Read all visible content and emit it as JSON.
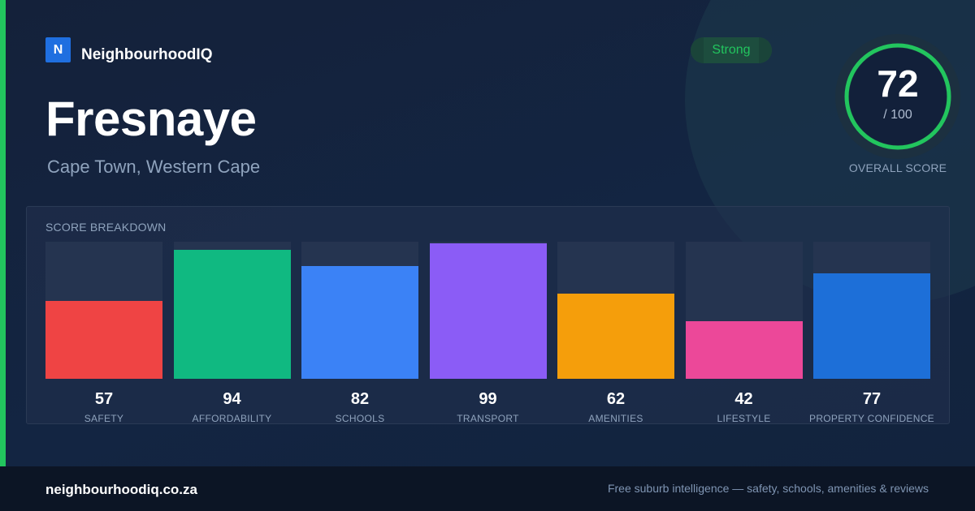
{
  "brand": {
    "logo_letter": "N",
    "name": "NeighbourhoodIQ"
  },
  "suburb": {
    "name": "Fresnaye",
    "location": "Cape Town, Western Cape"
  },
  "rating": {
    "badge": "Strong",
    "score": "72",
    "max": "/ 100",
    "score_fraction": 0.72,
    "caption": "OVERALL SCORE"
  },
  "breakdown": {
    "title": "SCORE BREAKDOWN",
    "items": [
      {
        "label": "SAFETY",
        "value": "57",
        "color": "#ef4444"
      },
      {
        "label": "AFFORDABILITY",
        "value": "94",
        "color": "#10b981"
      },
      {
        "label": "SCHOOLS",
        "value": "82",
        "color": "#3b82f6"
      },
      {
        "label": "TRANSPORT",
        "value": "99",
        "color": "#8b5cf6"
      },
      {
        "label": "AMENITIES",
        "value": "62",
        "color": "#f59e0b"
      },
      {
        "label": "LIFESTYLE",
        "value": "42",
        "color": "#ec4899"
      },
      {
        "label": "PROPERTY CONFIDENCE",
        "value": "77",
        "color": "#1d6fd8"
      }
    ]
  },
  "colors": {
    "accent": "#22c55e",
    "background": "#12203a",
    "brand_blue": "#1f6fe0"
  },
  "footer": {
    "url": "neighbourhoodiq.co.za",
    "tagline": "Free suburb intelligence — safety, schools, amenities & reviews"
  }
}
